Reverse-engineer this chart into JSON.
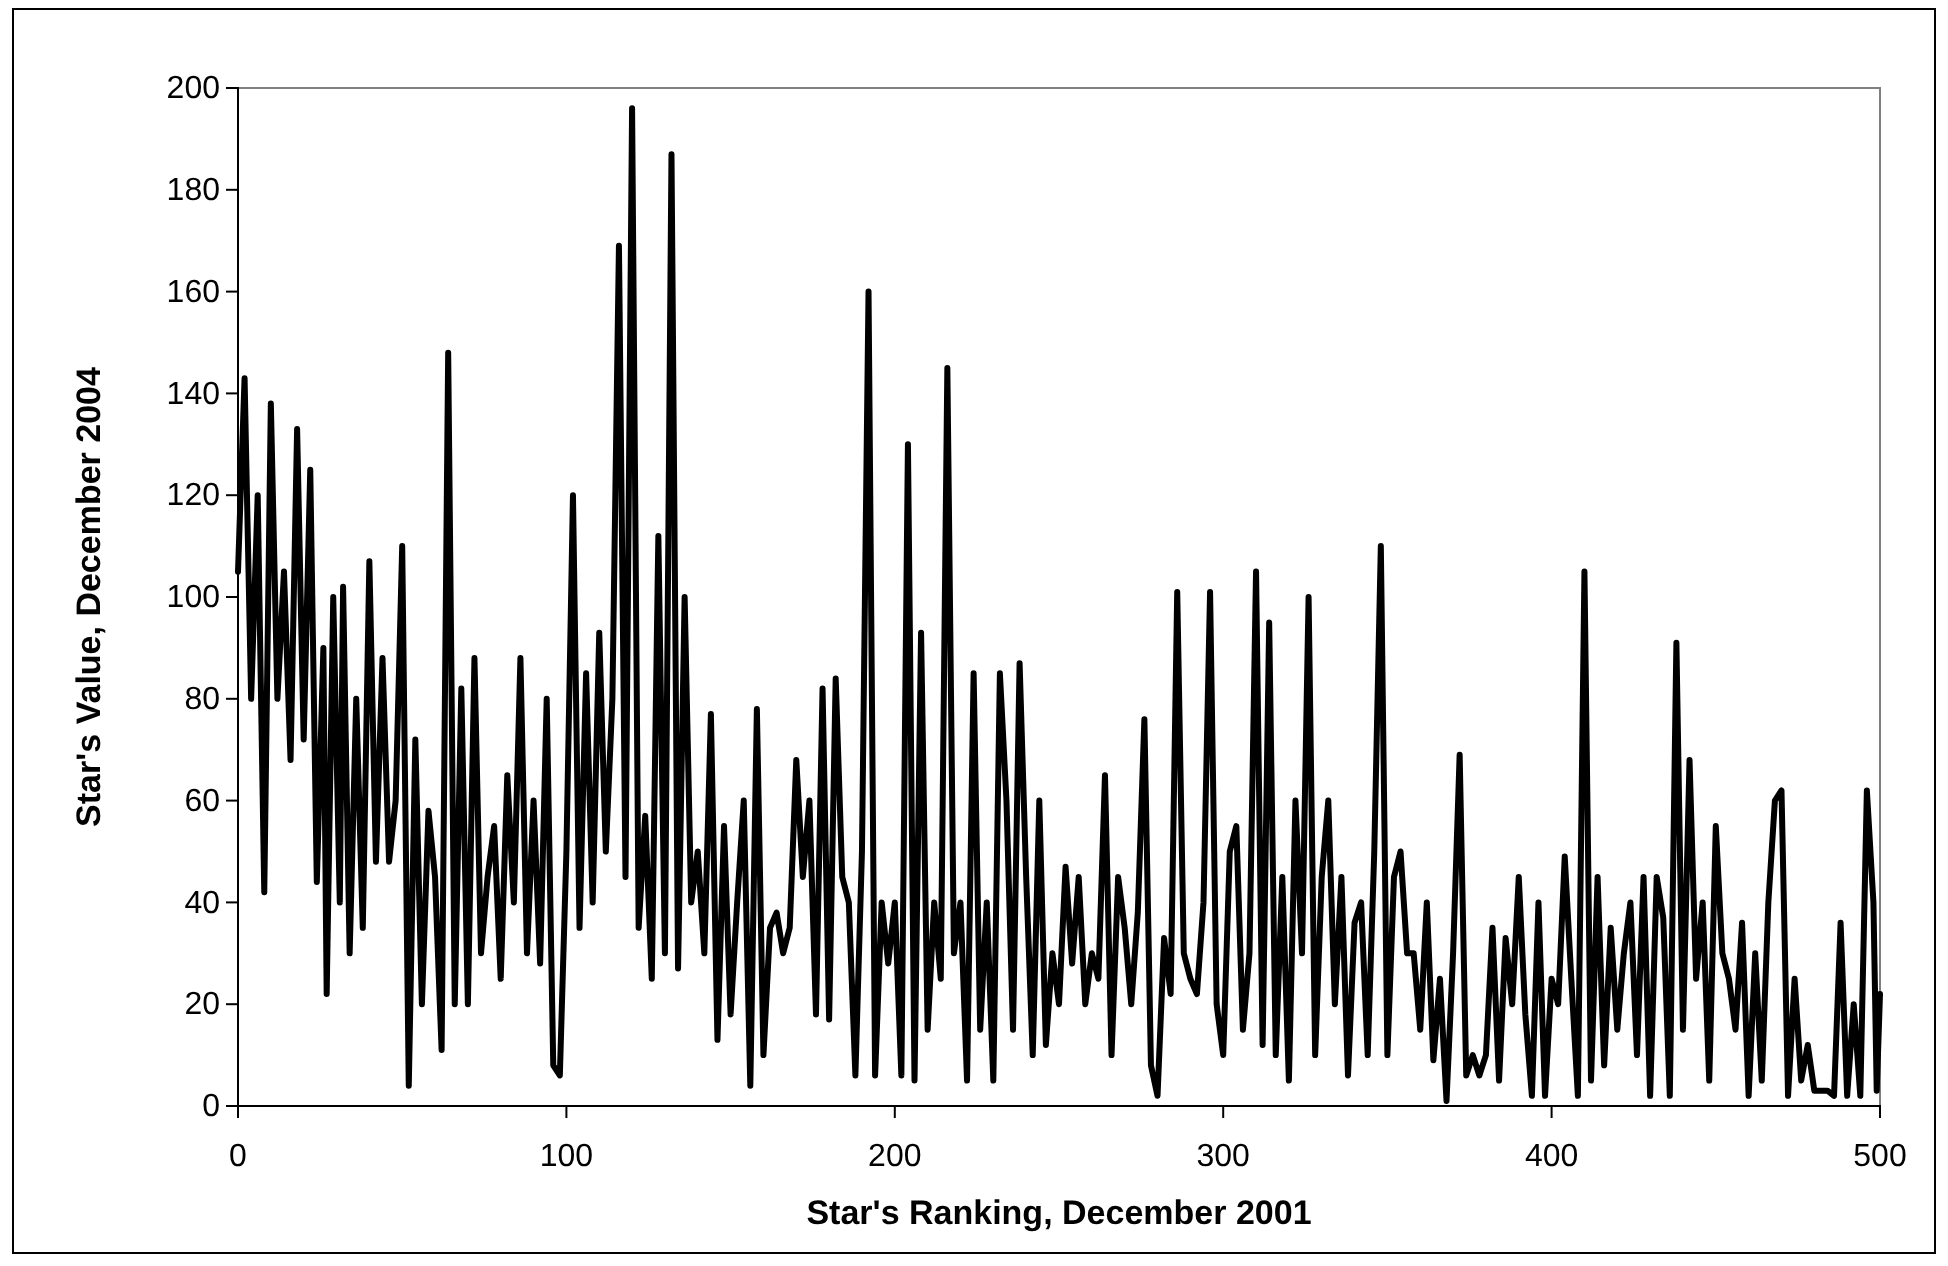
{
  "chart_data": {
    "type": "line",
    "xlabel": "Star's Ranking, December 2001",
    "ylabel": "Star's Value, December 2004",
    "xlim": [
      0,
      500
    ],
    "xticks": [
      0,
      100,
      200,
      300,
      400,
      500
    ],
    "ylim": [
      0,
      200
    ],
    "yticks": [
      0,
      20,
      40,
      60,
      80,
      100,
      120,
      140,
      160,
      180,
      200
    ],
    "marker": "none",
    "line_style": "solid",
    "x": [
      0,
      2,
      4,
      6,
      8,
      10,
      12,
      14,
      16,
      18,
      20,
      22,
      24,
      26,
      27,
      29,
      31,
      32,
      34,
      36,
      38,
      40,
      42,
      44,
      46,
      48,
      50,
      52,
      54,
      56,
      58,
      60,
      62,
      64,
      66,
      68,
      70,
      72,
      74,
      76,
      78,
      80,
      82,
      84,
      86,
      88,
      90,
      92,
      94,
      96,
      98,
      100,
      102,
      104,
      106,
      108,
      110,
      112,
      114,
      116,
      118,
      120,
      122,
      124,
      126,
      128,
      130,
      132,
      134,
      136,
      138,
      140,
      142,
      144,
      146,
      148,
      150,
      152,
      154,
      156,
      158,
      160,
      162,
      164,
      166,
      168,
      170,
      172,
      174,
      176,
      178,
      180,
      182,
      184,
      186,
      188,
      190,
      192,
      194,
      196,
      198,
      200,
      202,
      204,
      206,
      208,
      210,
      212,
      214,
      216,
      218,
      220,
      222,
      224,
      226,
      228,
      230,
      232,
      234,
      236,
      238,
      240,
      242,
      244,
      246,
      248,
      250,
      252,
      254,
      256,
      258,
      260,
      262,
      264,
      266,
      268,
      270,
      272,
      274,
      276,
      278,
      280,
      282,
      284,
      286,
      288,
      290,
      292,
      294,
      296,
      298,
      300,
      302,
      304,
      306,
      308,
      310,
      312,
      314,
      316,
      318,
      320,
      322,
      324,
      326,
      328,
      330,
      332,
      334,
      336,
      338,
      340,
      342,
      344,
      346,
      348,
      350,
      352,
      354,
      356,
      358,
      360,
      362,
      364,
      366,
      368,
      370,
      372,
      374,
      376,
      378,
      380,
      382,
      384,
      386,
      388,
      390,
      392,
      394,
      396,
      398,
      400,
      402,
      404,
      406,
      408,
      410,
      412,
      414,
      416,
      418,
      420,
      422,
      424,
      426,
      428,
      430,
      432,
      434,
      436,
      438,
      440,
      442,
      444,
      446,
      448,
      450,
      452,
      454,
      456,
      458,
      460,
      462,
      464,
      466,
      468,
      470,
      472,
      474,
      476,
      478,
      480,
      482,
      484,
      486,
      488,
      490,
      492,
      494,
      496,
      498,
      499,
      500
    ],
    "series": [
      {
        "color": "#000000",
        "values": [
          105,
          143,
          80,
          120,
          42,
          138,
          80,
          105,
          68,
          133,
          72,
          125,
          44,
          90,
          22,
          100,
          40,
          102,
          30,
          80,
          35,
          107,
          48,
          88,
          48,
          60,
          110,
          4,
          72,
          20,
          58,
          45,
          11,
          148,
          20,
          82,
          20,
          88,
          30,
          45,
          55,
          25,
          65,
          40,
          88,
          30,
          60,
          28,
          80,
          8,
          6,
          50,
          120,
          35,
          85,
          40,
          93,
          50,
          80,
          169,
          45,
          196,
          35,
          57,
          25,
          112,
          30,
          187,
          27,
          100,
          40,
          50,
          30,
          77,
          13,
          55,
          18,
          40,
          60,
          4,
          78,
          10,
          35,
          38,
          30,
          35,
          68,
          45,
          60,
          18,
          82,
          17,
          84,
          45,
          40,
          6,
          50,
          160,
          6,
          40,
          28,
          40,
          6,
          130,
          5,
          93,
          15,
          40,
          25,
          145,
          30,
          40,
          5,
          85,
          15,
          40,
          5,
          85,
          60,
          15,
          87,
          45,
          10,
          60,
          12,
          30,
          20,
          47,
          28,
          45,
          20,
          30,
          25,
          65,
          10,
          45,
          35,
          20,
          38,
          76,
          8,
          2,
          33,
          22,
          101,
          30,
          25,
          22,
          40,
          101,
          20,
          10,
          50,
          55,
          15,
          30,
          105,
          12,
          95,
          10,
          45,
          5,
          60,
          30,
          100,
          10,
          45,
          60,
          20,
          45,
          6,
          36,
          40,
          10,
          50,
          110,
          10,
          45,
          50,
          30,
          30,
          15,
          40,
          9,
          25,
          1,
          30,
          69,
          6,
          10,
          6,
          10,
          35,
          5,
          33,
          20,
          45,
          18,
          2,
          40,
          2,
          25,
          20,
          49,
          25,
          2,
          105,
          5,
          45,
          8,
          35,
          15,
          30,
          40,
          10,
          45,
          2,
          45,
          37,
          2,
          91,
          15,
          68,
          25,
          40,
          5,
          55,
          30,
          25,
          15,
          36,
          2,
          30,
          5,
          40,
          60,
          62,
          2,
          25,
          5,
          12,
          3,
          3,
          3,
          2,
          36,
          2,
          20,
          2,
          62,
          40,
          3,
          22
        ]
      }
    ]
  }
}
